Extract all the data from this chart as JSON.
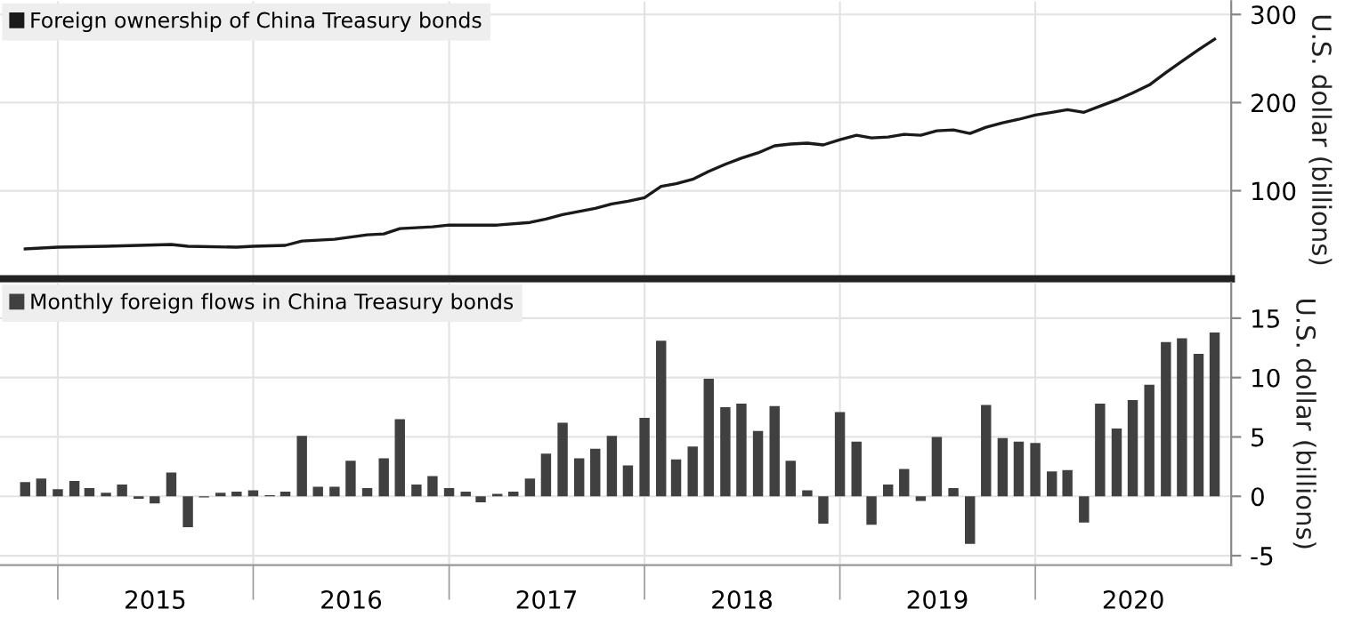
{
  "chart_data": [
    {
      "type": "line",
      "xlim": [
        "2014-09-15",
        "2021-01-01"
      ],
      "ylim": [
        0,
        315
      ],
      "yticks": [
        100,
        200,
        300
      ],
      "ylabel": "U.S. dollar (billions)",
      "legend": "top left",
      "grid": true,
      "tick_labels": "y",
      "xticks": [
        {
          "value": "2015-01-01",
          "label": null
        },
        {
          "value": "2016-01-01",
          "label": null
        },
        {
          "value": "2017-01-01",
          "label": null
        },
        {
          "value": "2018-01-01",
          "label": null
        },
        {
          "value": "2019-01-01",
          "label": null
        },
        {
          "value": "2020-01-01",
          "label": null
        }
      ],
      "x": [
        "2014-11",
        "2015-01",
        "2015-04",
        "2015-06",
        "2015-08",
        "2015-09",
        "2015-12",
        "2016-01",
        "2016-03",
        "2016-04",
        "2016-06",
        "2016-08",
        "2016-09",
        "2016-10",
        "2016-12",
        "2017-01",
        "2017-04",
        "2017-06",
        "2017-07",
        "2017-08",
        "2017-10",
        "2017-11",
        "2017-12",
        "2018-01",
        "2018-02",
        "2018-03",
        "2018-04",
        "2018-05",
        "2018-06",
        "2018-07",
        "2018-08",
        "2018-09",
        "2018-10",
        "2018-11",
        "2018-12",
        "2019-01",
        "2019-02",
        "2019-03",
        "2019-04",
        "2019-05",
        "2019-06",
        "2019-07",
        "2019-08",
        "2019-09",
        "2019-10",
        "2019-11",
        "2019-12",
        "2020-01",
        "2020-02",
        "2020-03",
        "2020-04",
        "2020-05",
        "2020-06",
        "2020-07",
        "2020-08",
        "2020-09",
        "2020-10",
        "2020-11",
        "2020-12"
      ],
      "series": [
        {
          "name": "Foreign ownership of China Treasury bonds",
          "color": "#1a1a1a",
          "values": [
            34,
            36,
            37,
            38,
            39,
            37,
            36,
            37,
            38,
            43,
            45,
            50,
            51,
            57,
            59,
            61,
            61,
            64,
            68,
            73,
            80,
            85,
            88,
            92,
            105,
            108,
            113,
            122,
            130,
            137,
            143,
            151,
            153,
            154,
            152,
            158,
            163,
            160,
            161,
            164,
            163,
            168,
            169,
            165,
            172,
            177,
            181,
            186,
            189,
            192,
            189,
            196,
            203,
            211,
            220,
            234,
            247,
            260,
            272
          ]
        }
      ]
    },
    {
      "type": "bar",
      "xlim": [
        "2014-09-15",
        "2021-01-01"
      ],
      "ylim": [
        -5.8,
        18
      ],
      "yticks": [
        -5,
        0,
        5,
        10,
        15
      ],
      "ylabel": "U.S. dollar (billions)",
      "legend": "top left",
      "grid": true,
      "xticks": [
        {
          "value": "2015-01-01",
          "label": null
        },
        {
          "value": "2015-07-02",
          "label": "2015"
        },
        {
          "value": "2016-01-01",
          "label": null
        },
        {
          "value": "2016-07-02",
          "label": "2016"
        },
        {
          "value": "2017-01-01",
          "label": null
        },
        {
          "value": "2017-07-02",
          "label": "2017"
        },
        {
          "value": "2018-01-01",
          "label": null
        },
        {
          "value": "2018-07-02",
          "label": "2018"
        },
        {
          "value": "2019-01-01",
          "label": null
        },
        {
          "value": "2019-07-02",
          "label": "2019"
        },
        {
          "value": "2020-01-01",
          "label": null
        },
        {
          "value": "2020-07-02",
          "label": "2020"
        }
      ],
      "x": [
        "2014-11",
        "2014-12",
        "2015-01",
        "2015-02",
        "2015-03",
        "2015-04",
        "2015-05",
        "2015-06",
        "2015-07",
        "2015-08",
        "2015-09",
        "2015-10",
        "2015-11",
        "2015-12",
        "2016-01",
        "2016-02",
        "2016-03",
        "2016-04",
        "2016-05",
        "2016-06",
        "2016-07",
        "2016-08",
        "2016-09",
        "2016-10",
        "2016-11",
        "2016-12",
        "2017-01",
        "2017-02",
        "2017-03",
        "2017-04",
        "2017-05",
        "2017-06",
        "2017-07",
        "2017-08",
        "2017-09",
        "2017-10",
        "2017-11",
        "2017-12",
        "2018-01",
        "2018-02",
        "2018-03",
        "2018-04",
        "2018-05",
        "2018-06",
        "2018-07",
        "2018-08",
        "2018-09",
        "2018-10",
        "2018-11",
        "2018-12",
        "2019-01",
        "2019-02",
        "2019-03",
        "2019-04",
        "2019-05",
        "2019-06",
        "2019-07",
        "2019-08",
        "2019-09",
        "2019-10",
        "2019-11",
        "2019-12",
        "2020-01",
        "2020-02",
        "2020-03",
        "2020-04",
        "2020-05",
        "2020-06",
        "2020-07",
        "2020-08",
        "2020-09",
        "2020-10",
        "2020-11",
        "2020-12"
      ],
      "series": [
        {
          "name": "Monthly foreign flows in China Treasury bonds",
          "color": "#404040",
          "values": [
            1.2,
            1.5,
            0.6,
            1.3,
            0.7,
            0.3,
            1.0,
            -0.2,
            -0.6,
            2.0,
            -2.6,
            -0.1,
            0.3,
            0.4,
            0.5,
            0.1,
            0.4,
            5.1,
            0.8,
            0.8,
            3.0,
            0.7,
            3.2,
            6.5,
            1.0,
            1.7,
            0.7,
            0.4,
            -0.5,
            0.2,
            0.4,
            1.5,
            3.6,
            6.2,
            3.2,
            4.0,
            5.1,
            2.6,
            6.6,
            13.1,
            3.1,
            4.2,
            9.9,
            7.5,
            7.8,
            5.5,
            7.6,
            3.0,
            0.5,
            -2.3,
            7.1,
            4.6,
            -2.4,
            1.0,
            2.3,
            -0.4,
            5.0,
            0.7,
            -4.0,
            7.7,
            4.9,
            4.6,
            4.5,
            2.1,
            2.2,
            -2.2,
            7.8,
            5.7,
            8.1,
            9.4,
            13.0,
            13.3,
            12.0,
            13.8
          ]
        }
      ]
    }
  ]
}
